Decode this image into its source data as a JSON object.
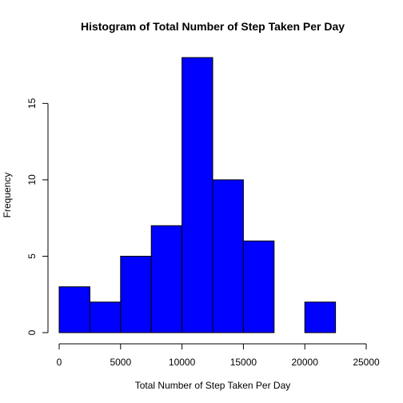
{
  "chart_data": {
    "type": "bar",
    "title": "Histogram of Total Number of Step Taken Per Day",
    "xlabel": "Total Number of Step Taken Per Day",
    "ylabel": "Frequency",
    "bin_edges": [
      0,
      2500,
      5000,
      7500,
      10000,
      12500,
      15000,
      17500,
      20000,
      22500
    ],
    "values": [
      3,
      2,
      5,
      7,
      18,
      10,
      6,
      0,
      2
    ],
    "xlim": [
      0,
      25000
    ],
    "ylim": [
      0,
      18
    ],
    "x_ticks": [
      0,
      5000,
      10000,
      15000,
      20000,
      25000
    ],
    "y_ticks": [
      0,
      5,
      10,
      15
    ],
    "bar_color": "#0000FF",
    "grid": false
  }
}
